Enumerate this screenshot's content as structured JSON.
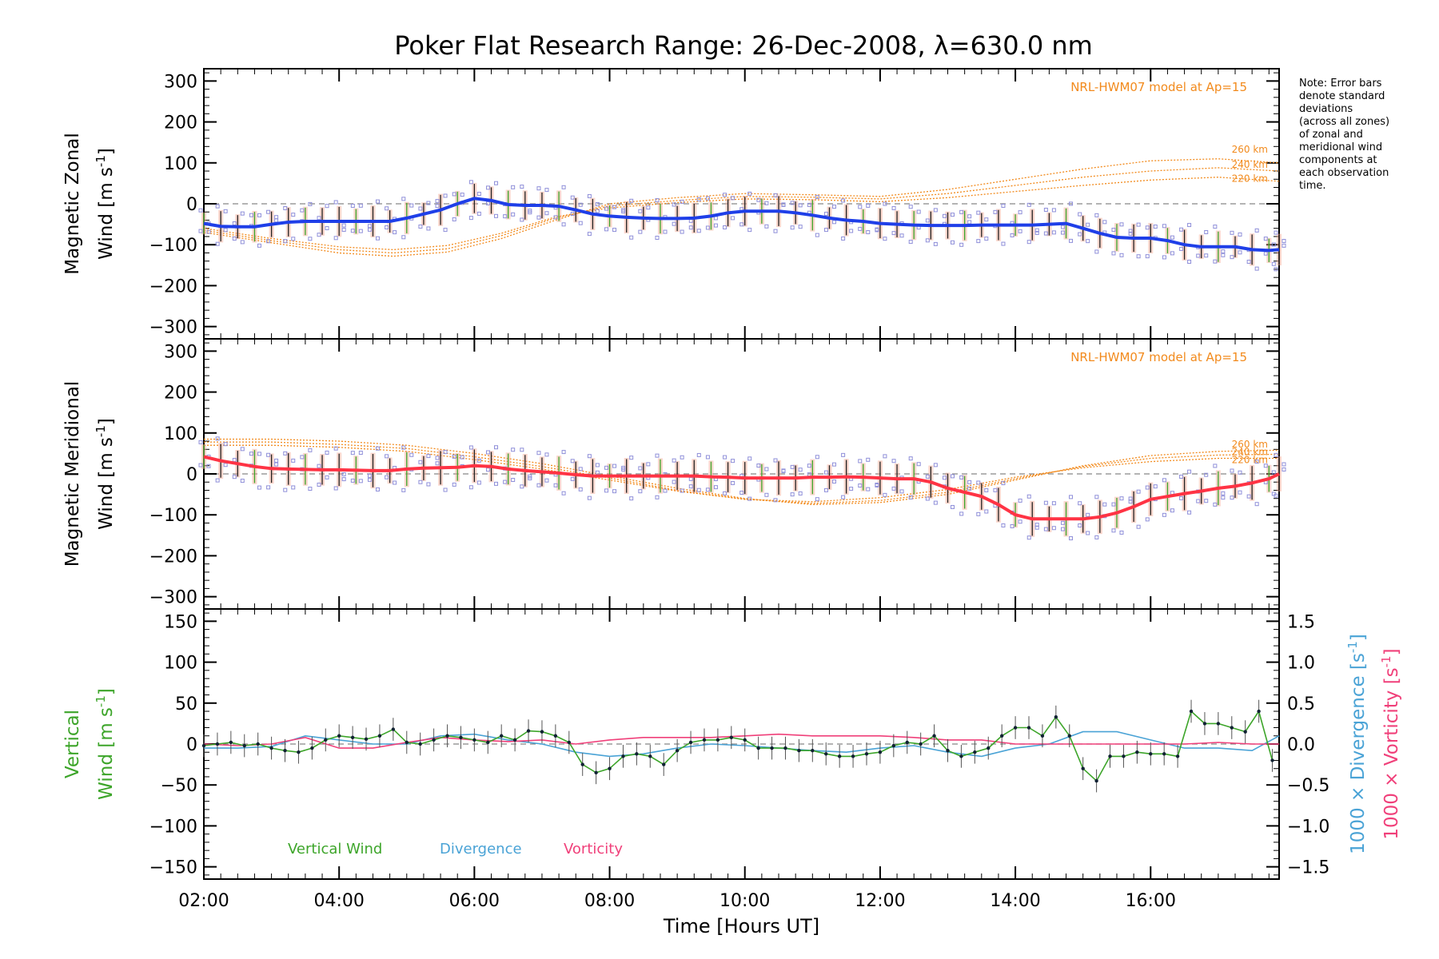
{
  "title": "Poker Flat Research Range: 26-Dec-2008, λ=630.0 nm",
  "note_lines": [
    "Note: Error bars",
    "denote standard",
    "deviations",
    "(across all zones)",
    "of zonal and",
    "meridional wind",
    "components at",
    "each observation",
    "time."
  ],
  "model_label": "NRL-HWM07 model at Ap=15",
  "colors": {
    "zonal": "#1f3fe8",
    "meridional": "#ff3344",
    "vertical": "#3da52a",
    "divergence": "#4aa3d6",
    "vorticity": "#f0407a",
    "model": "#f28a1c",
    "scatter": "#8f8fd9",
    "zonal_err": "#f3a58f",
    "axis": "#000000"
  },
  "chart_data": [
    {
      "panel": "zonal",
      "type": "line",
      "ylabel_line1": "Magnetic Zonal",
      "ylabel_line2": "Wind [m s",
      "ylabel_sup": "-1",
      "ylabel_end": "]",
      "ylim": [
        -330,
        330
      ],
      "xlim": [
        2.0,
        17.9
      ],
      "yticks": [
        300,
        200,
        100,
        0,
        -100,
        -200,
        -300
      ],
      "yticklabels": [
        "300",
        "200",
        "100",
        "0",
        "−100",
        "−200",
        "−300"
      ],
      "zero_line": true,
      "model_annotation": "NRL-HWM07 model at Ap=15",
      "model_series": [
        {
          "name": "260 km",
          "x": [
            2.0,
            3.0,
            4.0,
            4.8,
            5.6,
            6.4,
            7.2,
            8.0,
            9.0,
            10.0,
            11.0,
            12.0,
            13.0,
            14.0,
            15.0,
            16.0,
            17.0,
            17.9
          ],
          "y": [
            -70,
            -95,
            -120,
            -128,
            -118,
            -85,
            -40,
            0,
            15,
            25,
            22,
            18,
            35,
            60,
            85,
            105,
            110,
            100
          ]
        },
        {
          "name": "240 km",
          "x": [
            2.0,
            3.0,
            4.0,
            4.8,
            5.6,
            6.4,
            7.2,
            8.0,
            9.0,
            10.0,
            11.0,
            12.0,
            13.0,
            14.0,
            15.0,
            16.0,
            17.0,
            17.9
          ],
          "y": [
            -65,
            -90,
            -112,
            -120,
            -110,
            -78,
            -35,
            -5,
            8,
            18,
            16,
            12,
            25,
            45,
            65,
            80,
            88,
            80
          ]
        },
        {
          "name": "220 km",
          "x": [
            2.0,
            3.0,
            4.0,
            4.8,
            5.6,
            6.4,
            7.2,
            8.0,
            9.0,
            10.0,
            11.0,
            12.0,
            13.0,
            14.0,
            15.0,
            16.0,
            17.0,
            17.9
          ],
          "y": [
            -60,
            -85,
            -105,
            -112,
            -102,
            -72,
            -32,
            -10,
            3,
            12,
            10,
            5,
            15,
            30,
            45,
            58,
            65,
            55
          ]
        }
      ],
      "mean": {
        "x": [
          2.0,
          2.25,
          2.5,
          2.75,
          3.0,
          3.25,
          3.5,
          3.75,
          4.0,
          4.25,
          4.5,
          4.75,
          5.0,
          5.25,
          5.5,
          5.75,
          6.0,
          6.25,
          6.5,
          6.75,
          7.0,
          7.25,
          7.5,
          7.75,
          8.0,
          8.25,
          8.5,
          8.75,
          9.0,
          9.25,
          9.5,
          9.75,
          10.0,
          10.25,
          10.5,
          10.75,
          11.0,
          11.25,
          11.5,
          11.75,
          12.0,
          12.25,
          12.5,
          12.75,
          13.0,
          13.25,
          13.5,
          13.75,
          14.0,
          14.25,
          14.5,
          14.75,
          15.0,
          15.25,
          15.5,
          15.75,
          16.0,
          16.25,
          16.5,
          16.75,
          17.0,
          17.25,
          17.5,
          17.75,
          17.9
        ],
        "y": [
          -48,
          -55,
          -56,
          -56,
          -50,
          -45,
          -43,
          -43,
          -43,
          -43,
          -43,
          -43,
          -35,
          -25,
          -15,
          0,
          13,
          8,
          -2,
          -4,
          -4,
          -6,
          -15,
          -25,
          -30,
          -33,
          -35,
          -36,
          -36,
          -35,
          -30,
          -22,
          -18,
          -18,
          -18,
          -22,
          -28,
          -35,
          -40,
          -43,
          -48,
          -50,
          -52,
          -53,
          -53,
          -53,
          -52,
          -52,
          -52,
          -52,
          -50,
          -48,
          -60,
          -72,
          -82,
          -84,
          -84,
          -90,
          -100,
          -105,
          -105,
          -105,
          -112,
          -114,
          -112
        ]
      },
      "scatter_spread": 45
    },
    {
      "panel": "meridional",
      "type": "line",
      "ylabel_line1": "Magnetic Meridional",
      "ylabel_line2": "Wind [m s",
      "ylabel_sup": "-1",
      "ylabel_end": "]",
      "ylim": [
        -330,
        330
      ],
      "xlim": [
        2.0,
        17.9
      ],
      "yticks": [
        300,
        200,
        100,
        0,
        -100,
        -200,
        -300
      ],
      "yticklabels": [
        "300",
        "200",
        "100",
        "0",
        "−100",
        "−200",
        "−300"
      ],
      "zero_line": true,
      "model_annotation": "NRL-HWM07 model at Ap=15",
      "model_series": [
        {
          "name": "260 km",
          "x": [
            2.0,
            3.0,
            4.0,
            5.0,
            6.0,
            7.0,
            8.0,
            9.0,
            10.0,
            11.0,
            12.0,
            13.0,
            14.0,
            15.0,
            16.0,
            17.0,
            17.9
          ],
          "y": [
            85,
            85,
            80,
            70,
            50,
            25,
            -5,
            -35,
            -60,
            -75,
            -70,
            -50,
            -15,
            20,
            45,
            55,
            58
          ]
        },
        {
          "name": "240 km",
          "x": [
            2.0,
            3.0,
            4.0,
            5.0,
            6.0,
            7.0,
            8.0,
            9.0,
            10.0,
            11.0,
            12.0,
            13.0,
            14.0,
            15.0,
            16.0,
            17.0,
            17.9
          ],
          "y": [
            78,
            78,
            72,
            62,
            42,
            18,
            -10,
            -40,
            -62,
            -72,
            -65,
            -45,
            -12,
            18,
            38,
            46,
            48
          ]
        },
        {
          "name": "220 km",
          "x": [
            2.0,
            3.0,
            4.0,
            5.0,
            6.0,
            7.0,
            8.0,
            9.0,
            10.0,
            11.0,
            12.0,
            13.0,
            14.0,
            15.0,
            16.0,
            17.0,
            17.9
          ],
          "y": [
            70,
            70,
            65,
            55,
            35,
            12,
            -15,
            -42,
            -62,
            -68,
            -58,
            -38,
            -8,
            15,
            30,
            38,
            38
          ]
        }
      ],
      "mean": {
        "x": [
          2.0,
          2.25,
          2.5,
          2.75,
          3.0,
          3.25,
          3.5,
          3.75,
          4.0,
          4.25,
          4.5,
          4.75,
          5.0,
          5.25,
          5.5,
          5.75,
          6.0,
          6.25,
          6.5,
          6.75,
          7.0,
          7.25,
          7.5,
          7.75,
          8.0,
          8.25,
          8.5,
          8.75,
          9.0,
          9.25,
          9.5,
          9.75,
          10.0,
          10.25,
          10.5,
          10.75,
          11.0,
          11.25,
          11.5,
          11.75,
          12.0,
          12.25,
          12.5,
          12.75,
          13.0,
          13.25,
          13.5,
          13.75,
          14.0,
          14.25,
          14.5,
          14.75,
          15.0,
          15.25,
          15.5,
          15.75,
          16.0,
          16.25,
          16.5,
          16.75,
          17.0,
          17.25,
          17.5,
          17.75,
          17.9
        ],
        "y": [
          42,
          32,
          25,
          18,
          13,
          12,
          11,
          10,
          10,
          9,
          8,
          8,
          12,
          14,
          15,
          16,
          20,
          18,
          12,
          8,
          5,
          2,
          -2,
          -5,
          -5,
          -5,
          -5,
          -5,
          -5,
          -5,
          -7,
          -8,
          -10,
          -10,
          -10,
          -10,
          -8,
          -8,
          -7,
          -8,
          -10,
          -12,
          -12,
          -20,
          -35,
          -45,
          -55,
          -75,
          -100,
          -110,
          -110,
          -110,
          -110,
          -105,
          -95,
          -80,
          -62,
          -55,
          -48,
          -42,
          -35,
          -30,
          -22,
          -12,
          0
        ]
      },
      "scatter_spread": 50
    },
    {
      "panel": "vertical",
      "type": "line",
      "ylabel_line1": "Vertical",
      "ylabel_line2": "Wind [m s",
      "ylabel_sup": "-1",
      "ylabel_end": "]",
      "ylim": [
        -165,
        165
      ],
      "xlim": [
        2.0,
        17.9
      ],
      "yticks": [
        150,
        100,
        50,
        0,
        -50,
        -100,
        -150
      ],
      "yticklabels": [
        "150",
        "100",
        "50",
        "0",
        "−50",
        "−100",
        "−150"
      ],
      "y2_label_div": "1000 × Divergence [s",
      "y2_label_vor": "1000 × Vorticity [s",
      "y2_sup": "-1",
      "y2_end": "]",
      "y2lim": [
        -1.65,
        1.65
      ],
      "y2ticks": [
        1.5,
        1.0,
        0.5,
        0.0,
        -0.5,
        -1.0,
        -1.5
      ],
      "y2ticklabels": [
        "1.5",
        "1.0",
        "0.5",
        "0.0",
        "−0.5",
        "−1.0",
        "−1.5"
      ],
      "zero_line": true,
      "xlabel": "Time [Hours UT]",
      "xticks": [
        2,
        4,
        6,
        8,
        10,
        12,
        14,
        16
      ],
      "xticklabels": [
        "02:00",
        "04:00",
        "06:00",
        "08:00",
        "10:00",
        "12:00",
        "14:00",
        "16:00"
      ],
      "legend": [
        {
          "label": "Vertical Wind",
          "color": "#3da52a"
        },
        {
          "label": "Divergence",
          "color": "#4aa3d6"
        },
        {
          "label": "Vorticity",
          "color": "#f0407a"
        }
      ],
      "vertical": {
        "x": [
          2.0,
          2.2,
          2.4,
          2.6,
          2.8,
          3.0,
          3.2,
          3.4,
          3.6,
          3.8,
          4.0,
          4.2,
          4.4,
          4.6,
          4.8,
          5.0,
          5.2,
          5.4,
          5.6,
          5.8,
          6.0,
          6.2,
          6.4,
          6.6,
          6.8,
          7.0,
          7.2,
          7.4,
          7.6,
          7.8,
          8.0,
          8.2,
          8.4,
          8.6,
          8.8,
          9.0,
          9.2,
          9.4,
          9.6,
          9.8,
          10.0,
          10.2,
          10.4,
          10.6,
          10.8,
          11.0,
          11.2,
          11.4,
          11.6,
          11.8,
          12.0,
          12.2,
          12.4,
          12.6,
          12.8,
          13.0,
          13.2,
          13.4,
          13.6,
          13.8,
          14.0,
          14.2,
          14.4,
          14.6,
          14.8,
          15.0,
          15.2,
          15.4,
          15.6,
          15.8,
          16.0,
          16.2,
          16.4,
          16.6,
          16.8,
          17.0,
          17.2,
          17.4,
          17.6,
          17.8
        ],
        "y": [
          -2,
          0,
          2,
          -2,
          0,
          -5,
          -8,
          -10,
          -5,
          5,
          10,
          8,
          6,
          10,
          18,
          2,
          0,
          5,
          10,
          8,
          5,
          2,
          10,
          5,
          16,
          15,
          10,
          2,
          -25,
          -35,
          -30,
          -15,
          -12,
          -15,
          -25,
          -8,
          2,
          5,
          5,
          8,
          5,
          -5,
          -5,
          -5,
          -8,
          -8,
          -12,
          -15,
          -15,
          -12,
          -10,
          -2,
          2,
          0,
          10,
          -8,
          -15,
          -10,
          -5,
          10,
          20,
          20,
          10,
          33,
          10,
          -30,
          -45,
          -15,
          -15,
          -10,
          -12,
          -12,
          -15,
          40,
          25,
          25,
          20,
          15,
          40,
          -20
        ]
      },
      "divergence": {
        "x": [
          2.0,
          2.5,
          3.0,
          3.5,
          4.0,
          4.5,
          5.0,
          5.5,
          6.0,
          6.5,
          7.0,
          7.5,
          8.0,
          8.5,
          9.0,
          9.5,
          10.0,
          10.5,
          11.0,
          11.5,
          12.0,
          12.5,
          13.0,
          13.5,
          14.0,
          14.5,
          15.0,
          15.5,
          16.0,
          16.5,
          17.0,
          17.5,
          17.9
        ],
        "y": [
          -0.05,
          -0.05,
          -0.03,
          0.1,
          0.05,
          0.0,
          0.0,
          0.1,
          0.12,
          0.05,
          0.0,
          -0.1,
          -0.15,
          -0.12,
          -0.05,
          0.0,
          -0.02,
          -0.05,
          -0.08,
          -0.1,
          -0.05,
          -0.02,
          -0.1,
          -0.15,
          -0.05,
          0.0,
          0.15,
          0.15,
          0.05,
          -0.05,
          -0.05,
          -0.08,
          0.1
        ]
      },
      "vorticity": {
        "x": [
          2.0,
          2.5,
          3.0,
          3.5,
          4.0,
          4.5,
          5.0,
          5.5,
          6.0,
          6.5,
          7.0,
          7.5,
          8.0,
          8.5,
          9.0,
          9.5,
          10.0,
          10.5,
          11.0,
          11.5,
          12.0,
          12.5,
          13.0,
          13.5,
          14.0,
          14.5,
          15.0,
          15.5,
          16.0,
          16.5,
          17.0,
          17.5,
          17.9
        ],
        "y": [
          0.0,
          -0.02,
          0.0,
          0.08,
          -0.05,
          -0.05,
          0.02,
          0.08,
          0.05,
          0.03,
          0.05,
          0.0,
          0.05,
          0.08,
          0.08,
          0.08,
          0.1,
          0.12,
          0.1,
          0.1,
          0.1,
          0.08,
          0.05,
          0.05,
          0.0,
          0.0,
          0.0,
          0.0,
          0.0,
          0.0,
          0.02,
          0.0,
          0.0
        ]
      }
    }
  ]
}
